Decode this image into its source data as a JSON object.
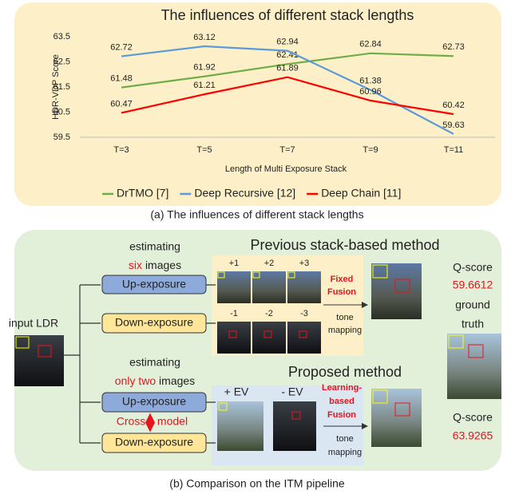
{
  "chart_data": {
    "type": "line",
    "title": "The influences of different stack lengths",
    "y_label": "HDR-VDP Score",
    "x_label": "Length of Multi Exposure Stack",
    "categories": [
      "T=3",
      "T=5",
      "T=7",
      "T=9",
      "T=11"
    ],
    "series": [
      {
        "name": "DrTMO [7]",
        "color": "#70ad47",
        "values": [
          61.48,
          61.92,
          62.41,
          62.84,
          62.73
        ]
      },
      {
        "name": "Deep Recursive [12]",
        "color": "#5b9bd5",
        "values": [
          62.72,
          63.12,
          62.94,
          61.38,
          59.63
        ]
      },
      {
        "name": "Deep Chain [11]",
        "color": "#ff0000",
        "values": [
          60.47,
          61.21,
          61.89,
          60.96,
          60.42
        ]
      }
    ],
    "ylim": [
      59.5,
      63.5
    ],
    "yticks": [
      59.5,
      60.5,
      61.5,
      62.5,
      63.5
    ],
    "grid": false,
    "legend": "bottom"
  },
  "caption_a": "(a) The influences of different stack lengths",
  "caption_b": "(b) Comparison on the ITM pipeline",
  "diagram": {
    "input_label": "input LDR",
    "ground_truth": [
      "ground",
      "truth"
    ],
    "previous": {
      "title": "Previous stack-based method",
      "estimating": "estimating",
      "count": "six",
      "images": "images",
      "up": "Up-exposure",
      "down": "Down-exposure",
      "up_labels": [
        "+1",
        "+2",
        "+3"
      ],
      "down_labels": [
        "-1",
        "-2",
        "-3"
      ],
      "fusion": [
        "Fixed",
        "Fusion"
      ],
      "tone": [
        "tone",
        "mapping"
      ],
      "q_label": "Q-score",
      "q_score": 59.6612
    },
    "proposed": {
      "title": "Proposed method",
      "estimating": "estimating",
      "count": "only two",
      "images": "images",
      "up": "Up-exposure",
      "down": "Down-exposure",
      "cross": "Cross",
      "model": "model",
      "ev": [
        "+ EV",
        "- EV"
      ],
      "fusion": [
        "Learning-",
        "based",
        "Fusion"
      ],
      "tone": [
        "tone",
        "mapping"
      ],
      "q_label": "Q-score",
      "q_score": 63.9265
    }
  }
}
